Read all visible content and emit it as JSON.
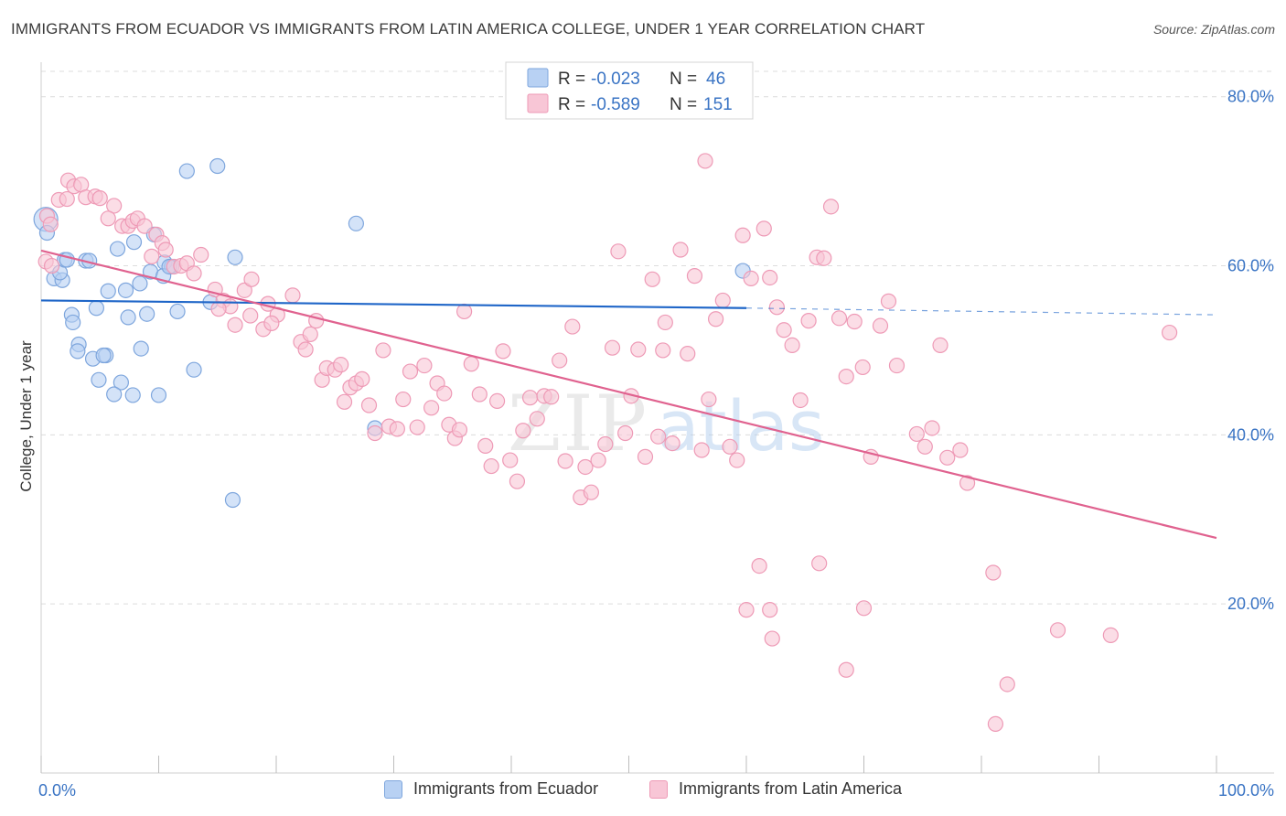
{
  "title": "IMMIGRANTS FROM ECUADOR VS IMMIGRANTS FROM LATIN AMERICA COLLEGE, UNDER 1 YEAR CORRELATION CHART",
  "source": "Source: ZipAtlas.com",
  "watermark": {
    "zip": "ZIP",
    "atlas": "atlas"
  },
  "colors": {
    "blue_fill": "#b8d1f3",
    "blue_stroke": "#7ea6dd",
    "blue_line": "#1f66c8",
    "pink_fill": "#f8c6d6",
    "pink_stroke": "#ee9ab6",
    "pink_line": "#e0628f",
    "axis_label": "#3a74c4",
    "grid": "#dcdcdc"
  },
  "stats_legend": {
    "r_label": "R =",
    "n_label": "N =",
    "rows": [
      {
        "series": "Immigrants from Ecuador",
        "r": "-0.023",
        "n": "46"
      },
      {
        "series": "Immigrants from Latin America",
        "r": "-0.589",
        "n": "151"
      }
    ]
  },
  "legend": {
    "items": [
      "Immigrants from Ecuador",
      "Immigrants from Latin America"
    ]
  },
  "chart_data": {
    "type": "scatter",
    "title": "IMMIGRANTS FROM ECUADOR VS IMMIGRANTS FROM LATIN AMERICA COLLEGE, UNDER 1 YEAR CORRELATION CHART",
    "xlabel": "",
    "ylabel": "College, Under 1 year",
    "xlim": [
      0,
      100
    ],
    "ylim": [
      0,
      83
    ],
    "x_tick_labels": [
      "0.0%",
      "100.0%"
    ],
    "y_ticks": [
      20,
      40,
      60,
      80
    ],
    "y_tick_labels": [
      "20.0%",
      "40.0%",
      "60.0%",
      "80.0%"
    ],
    "grid": true,
    "legend_position": "bottom",
    "series": [
      {
        "name": "Immigrants from Ecuador",
        "color": "#7ea6dd",
        "trend": {
          "x": [
            0,
            60
          ],
          "y": [
            55.9,
            55.0
          ],
          "dashed_extension_to_x": 100,
          "dashed_end_y": 54.2
        },
        "points": [
          [
            0.4,
            65.5
          ],
          [
            0.5,
            63.9
          ],
          [
            1.1,
            58.5
          ],
          [
            1.8,
            58.3
          ],
          [
            1.6,
            59.2
          ],
          [
            2.0,
            60.7
          ],
          [
            2.2,
            60.7
          ],
          [
            3.8,
            60.6
          ],
          [
            4.1,
            60.6
          ],
          [
            6.5,
            62.0
          ],
          [
            7.9,
            62.8
          ],
          [
            9.6,
            63.7
          ],
          [
            10.5,
            60.4
          ],
          [
            11.1,
            59.9
          ],
          [
            9.3,
            59.3
          ],
          [
            10.4,
            58.8
          ],
          [
            8.4,
            57.9
          ],
          [
            5.7,
            57.0
          ],
          [
            7.2,
            57.1
          ],
          [
            2.6,
            54.2
          ],
          [
            4.7,
            55.0
          ],
          [
            9.0,
            54.3
          ],
          [
            11.6,
            54.6
          ],
          [
            7.4,
            53.9
          ],
          [
            2.7,
            53.3
          ],
          [
            3.2,
            50.7
          ],
          [
            3.1,
            49.9
          ],
          [
            4.4,
            49.0
          ],
          [
            5.5,
            49.4
          ],
          [
            5.3,
            49.4
          ],
          [
            8.5,
            50.2
          ],
          [
            4.9,
            46.5
          ],
          [
            6.8,
            46.2
          ],
          [
            6.2,
            44.8
          ],
          [
            7.8,
            44.7
          ],
          [
            10.0,
            44.7
          ],
          [
            13.0,
            47.7
          ],
          [
            12.4,
            71.2
          ],
          [
            15.0,
            71.8
          ],
          [
            16.5,
            61.0
          ],
          [
            26.8,
            65.0
          ],
          [
            14.4,
            55.7
          ],
          [
            28.4,
            40.8
          ],
          [
            16.3,
            32.3
          ],
          [
            59.7,
            59.4
          ],
          [
            10.9,
            59.9
          ]
        ]
      },
      {
        "name": "Immigrants from Latin America",
        "color": "#ee9ab6",
        "trend": {
          "x": [
            0,
            100
          ],
          "y": [
            61.8,
            27.8
          ]
        },
        "points": [
          [
            0.5,
            65.9
          ],
          [
            0.8,
            64.9
          ],
          [
            1.5,
            67.8
          ],
          [
            2.2,
            67.9
          ],
          [
            2.3,
            70.1
          ],
          [
            2.8,
            69.4
          ],
          [
            3.4,
            69.6
          ],
          [
            3.8,
            68.1
          ],
          [
            4.6,
            68.2
          ],
          [
            5.0,
            68.0
          ],
          [
            6.2,
            67.1
          ],
          [
            5.7,
            65.6
          ],
          [
            6.9,
            64.7
          ],
          [
            7.4,
            64.7
          ],
          [
            7.8,
            65.3
          ],
          [
            8.2,
            65.6
          ],
          [
            8.8,
            64.7
          ],
          [
            9.8,
            63.7
          ],
          [
            10.3,
            62.7
          ],
          [
            10.6,
            61.9
          ],
          [
            9.4,
            61.1
          ],
          [
            11.3,
            59.9
          ],
          [
            11.9,
            60.0
          ],
          [
            12.4,
            60.3
          ],
          [
            13.0,
            59.1
          ],
          [
            13.6,
            61.3
          ],
          [
            0.4,
            60.5
          ],
          [
            0.9,
            60.0
          ],
          [
            14.8,
            57.2
          ],
          [
            15.5,
            55.9
          ],
          [
            16.1,
            55.2
          ],
          [
            17.3,
            57.1
          ],
          [
            17.9,
            58.4
          ],
          [
            15.1,
            54.9
          ],
          [
            16.5,
            53.0
          ],
          [
            17.8,
            54.1
          ],
          [
            18.9,
            52.5
          ],
          [
            19.3,
            55.5
          ],
          [
            20.1,
            54.2
          ],
          [
            19.6,
            53.2
          ],
          [
            21.4,
            56.5
          ],
          [
            22.1,
            51.0
          ],
          [
            22.5,
            50.1
          ],
          [
            22.9,
            51.9
          ],
          [
            23.4,
            53.5
          ],
          [
            23.9,
            46.5
          ],
          [
            24.3,
            47.9
          ],
          [
            25.0,
            47.7
          ],
          [
            25.5,
            48.3
          ],
          [
            25.8,
            43.9
          ],
          [
            26.3,
            45.6
          ],
          [
            26.8,
            46.1
          ],
          [
            27.3,
            46.6
          ],
          [
            27.9,
            43.5
          ],
          [
            28.4,
            40.2
          ],
          [
            29.1,
            50.0
          ],
          [
            29.6,
            41.0
          ],
          [
            30.3,
            40.7
          ],
          [
            30.8,
            44.2
          ],
          [
            31.4,
            47.5
          ],
          [
            32.0,
            40.9
          ],
          [
            32.6,
            48.2
          ],
          [
            33.2,
            43.2
          ],
          [
            33.7,
            46.1
          ],
          [
            34.3,
            44.9
          ],
          [
            34.7,
            41.2
          ],
          [
            35.2,
            39.6
          ],
          [
            35.6,
            40.6
          ],
          [
            36.0,
            54.6
          ],
          [
            36.6,
            48.4
          ],
          [
            37.3,
            44.8
          ],
          [
            37.8,
            38.7
          ],
          [
            38.3,
            36.3
          ],
          [
            38.8,
            44.0
          ],
          [
            39.3,
            49.9
          ],
          [
            39.9,
            37.0
          ],
          [
            40.5,
            34.5
          ],
          [
            41.0,
            40.5
          ],
          [
            41.6,
            44.4
          ],
          [
            42.2,
            41.9
          ],
          [
            42.8,
            44.6
          ],
          [
            43.4,
            44.5
          ],
          [
            44.1,
            48.8
          ],
          [
            44.6,
            36.9
          ],
          [
            45.2,
            52.8
          ],
          [
            45.9,
            32.6
          ],
          [
            46.3,
            36.2
          ],
          [
            46.8,
            33.2
          ],
          [
            47.4,
            37.0
          ],
          [
            48.0,
            38.9
          ],
          [
            48.6,
            50.3
          ],
          [
            49.1,
            61.7
          ],
          [
            49.7,
            40.2
          ],
          [
            50.2,
            44.6
          ],
          [
            50.8,
            50.1
          ],
          [
            51.4,
            37.4
          ],
          [
            52.0,
            58.4
          ],
          [
            52.5,
            39.8
          ],
          [
            53.1,
            53.3
          ],
          [
            53.7,
            39.0
          ],
          [
            54.4,
            61.9
          ],
          [
            55.0,
            49.6
          ],
          [
            55.6,
            58.8
          ],
          [
            56.2,
            38.2
          ],
          [
            56.8,
            44.2
          ],
          [
            57.4,
            53.7
          ],
          [
            58.0,
            55.9
          ],
          [
            58.6,
            38.6
          ],
          [
            59.2,
            37.0
          ],
          [
            59.7,
            63.6
          ],
          [
            60.4,
            58.5
          ],
          [
            56.5,
            72.4
          ],
          [
            61.5,
            64.4
          ],
          [
            62.0,
            58.6
          ],
          [
            62.6,
            55.1
          ],
          [
            63.2,
            52.4
          ],
          [
            63.9,
            50.6
          ],
          [
            64.6,
            44.1
          ],
          [
            65.3,
            53.5
          ],
          [
            66.0,
            61.0
          ],
          [
            66.6,
            60.9
          ],
          [
            67.2,
            67.0
          ],
          [
            67.9,
            53.8
          ],
          [
            68.5,
            46.9
          ],
          [
            69.2,
            53.4
          ],
          [
            69.9,
            48.0
          ],
          [
            70.6,
            37.4
          ],
          [
            71.4,
            52.9
          ],
          [
            72.1,
            55.8
          ],
          [
            72.8,
            48.2
          ],
          [
            74.5,
            40.1
          ],
          [
            75.2,
            38.6
          ],
          [
            75.8,
            40.8
          ],
          [
            76.5,
            50.6
          ],
          [
            77.1,
            37.3
          ],
          [
            78.2,
            38.2
          ],
          [
            78.8,
            34.3
          ],
          [
            61.1,
            24.5
          ],
          [
            66.2,
            24.8
          ],
          [
            81.0,
            23.7
          ],
          [
            60.0,
            19.3
          ],
          [
            62.0,
            19.3
          ],
          [
            70.0,
            19.5
          ],
          [
            62.2,
            15.9
          ],
          [
            68.5,
            12.2
          ],
          [
            86.5,
            16.9
          ],
          [
            91.0,
            16.3
          ],
          [
            82.2,
            10.5
          ],
          [
            81.2,
            5.8
          ],
          [
            96.0,
            52.1
          ],
          [
            52.9,
            50.0
          ]
        ]
      }
    ]
  }
}
